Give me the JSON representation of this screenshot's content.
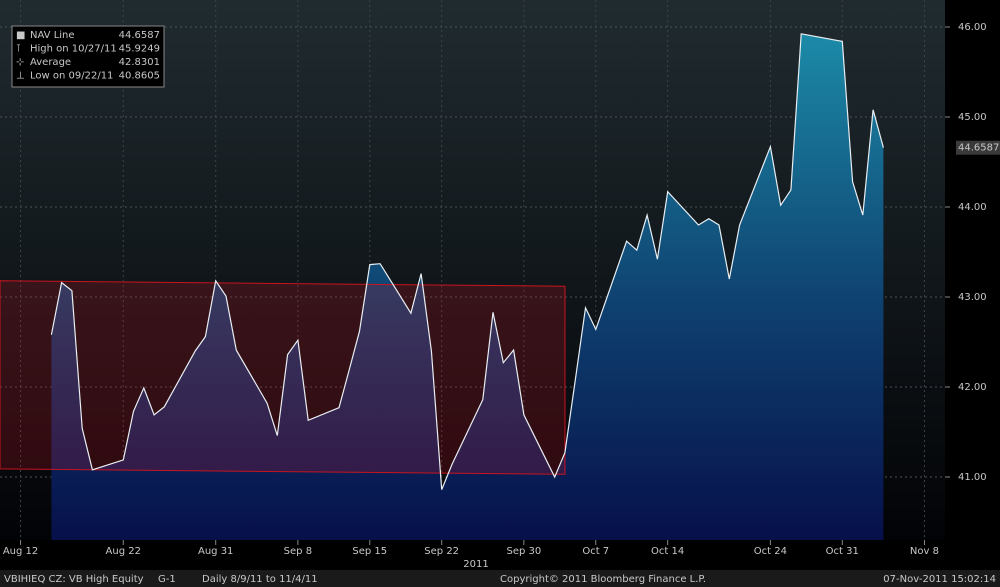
{
  "chart_data": {
    "type": "area",
    "series": [
      {
        "name": "NAV Line",
        "color": "#e8eef2",
        "values": [
          42.58,
          43.16,
          43.07,
          41.54,
          41.08,
          41.19,
          41.73,
          41.99,
          41.69,
          41.78,
          42.4,
          42.56,
          43.18,
          43.01,
          42.41,
          41.82,
          41.46,
          42.36,
          42.52,
          41.63,
          41.77,
          42.19,
          42.62,
          43.36,
          43.37,
          42.82,
          43.26,
          42.4,
          40.8605,
          41.14,
          41.86,
          42.83,
          42.27,
          42.41,
          41.69,
          41.0,
          41.27,
          42.07,
          42.88,
          42.64,
          43.62,
          43.52,
          43.91,
          43.42,
          44.17,
          43.8,
          43.87,
          43.8,
          43.2,
          43.8,
          44.67,
          44.02,
          44.19,
          45.9249,
          45.84,
          44.28,
          43.91,
          45.08,
          44.6587
        ]
      }
    ],
    "x": [
      "2011-08-15",
      "2011-08-16",
      "2011-08-17",
      "2011-08-18",
      "2011-08-19",
      "2011-08-22",
      "2011-08-23",
      "2011-08-24",
      "2011-08-25",
      "2011-08-26",
      "2011-08-29",
      "2011-08-30",
      "2011-08-31",
      "2011-09-01",
      "2011-09-02",
      "2011-09-05",
      "2011-09-06",
      "2011-09-07",
      "2011-09-08",
      "2011-09-09",
      "2011-09-12",
      "2011-09-13",
      "2011-09-14",
      "2011-09-15",
      "2011-09-16",
      "2011-09-19",
      "2011-09-20",
      "2011-09-21",
      "2011-09-22",
      "2011-09-23",
      "2011-09-26",
      "2011-09-27",
      "2011-09-28",
      "2011-09-29",
      "2011-09-30",
      "2011-10-03",
      "2011-10-04",
      "2011-10-05",
      "2011-10-06",
      "2011-10-07",
      "2011-10-10",
      "2011-10-11",
      "2011-10-12",
      "2011-10-13",
      "2011-10-14",
      "2011-10-17",
      "2011-10-18",
      "2011-10-19",
      "2011-10-20",
      "2011-10-21",
      "2011-10-24",
      "2011-10-25",
      "2011-10-26",
      "2011-10-27",
      "2011-10-31",
      "2011-11-01",
      "2011-11-02",
      "2011-11-03",
      "2011-11-04"
    ],
    "xlim": [
      "2011-08-10",
      "2011-11-10"
    ],
    "xticks": [
      {
        "value": "2011-08-12",
        "label": "Aug 12"
      },
      {
        "value": "2011-08-22",
        "label": "Aug 22"
      },
      {
        "value": "2011-08-31",
        "label": "Aug 31"
      },
      {
        "value": "2011-09-08",
        "label": "Sep 8"
      },
      {
        "value": "2011-09-15",
        "label": "Sep 15"
      },
      {
        "value": "2011-09-22",
        "label": "Sep 22"
      },
      {
        "value": "2011-09-30",
        "label": "Sep 30"
      },
      {
        "value": "2011-10-07",
        "label": "Oct 7"
      },
      {
        "value": "2011-10-14",
        "label": "Oct 14"
      },
      {
        "value": "2011-10-24",
        "label": "Oct 24"
      },
      {
        "value": "2011-10-31",
        "label": "Oct 31"
      },
      {
        "value": "2011-11-08",
        "label": "Nov 8"
      }
    ],
    "x_year_label": "2011",
    "ylim": [
      40.3,
      46.3
    ],
    "yticks": [
      {
        "value": 41,
        "label": "41.00"
      },
      {
        "value": 42,
        "label": "42.00"
      },
      {
        "value": 43,
        "label": "43.00"
      },
      {
        "value": 44,
        "label": "44.00"
      },
      {
        "value": 45,
        "label": "45.00"
      },
      {
        "value": 46,
        "label": "46.00"
      }
    ],
    "grid": true,
    "stats": [
      {
        "label": "High on 10/27/11",
        "value": 45.9249
      },
      {
        "label": "Average",
        "value": 42.8301
      },
      {
        "label": "Low on 09/22/11",
        "value": 40.8605
      }
    ],
    "channel": {
      "x": [
        "2011-08-10",
        "2011-10-04"
      ],
      "upper": [
        43.18,
        43.12
      ],
      "lower": [
        41.09,
        41.03
      ],
      "color": "#c8141e"
    },
    "footer": {
      "security": "VBIHIEQ CZ:  VB High Equity",
      "chart": "G-1",
      "period": "Daily  8/9/11 to 11/4/11",
      "copyright": "Copyright© 2011 Bloomberg Finance L.P.",
      "timestamp": "07-Nov-2011 15:02:14"
    }
  }
}
